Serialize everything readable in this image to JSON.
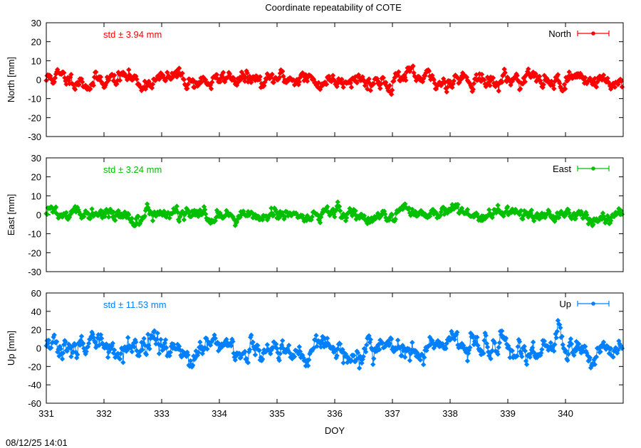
{
  "figure": {
    "title": "Coordinate repeatability of COTE",
    "timestamp": "08/12/25 14:01"
  },
  "chart_data": [
    {
      "type": "scatter",
      "id": "north",
      "ylabel": "North [mm]",
      "xlabel": "",
      "xlim": [
        331,
        341
      ],
      "ylim": [
        -30,
        30
      ],
      "yticks": [
        -30,
        -20,
        -10,
        0,
        10,
        20,
        30
      ],
      "xticks": [],
      "legend": "North",
      "legend_position": "top-right",
      "stat_label": "std ± 3.94 mm",
      "std": 3.94,
      "color": "#ff0000",
      "grid": false
    },
    {
      "type": "scatter",
      "id": "east",
      "ylabel": "East [mm]",
      "xlabel": "",
      "xlim": [
        331,
        341
      ],
      "ylim": [
        -30,
        30
      ],
      "yticks": [
        -30,
        -20,
        -10,
        0,
        10,
        20,
        30
      ],
      "xticks": [],
      "legend": "East",
      "legend_position": "top-right",
      "stat_label": "std ± 3.24 mm",
      "std": 3.24,
      "color": "#00c000",
      "grid": false
    },
    {
      "type": "scatter",
      "id": "up",
      "ylabel": "Up [mm]",
      "xlabel": "DOY",
      "xlim": [
        331,
        341
      ],
      "ylim": [
        -60,
        60
      ],
      "yticks": [
        -60,
        -40,
        -20,
        0,
        20,
        40,
        60
      ],
      "xticks": [
        331,
        332,
        333,
        334,
        335,
        336,
        337,
        338,
        339,
        340
      ],
      "legend": "Up",
      "legend_position": "top-right",
      "stat_label": "std ± 11.53 mm",
      "std": 11.53,
      "color": "#0080ff",
      "grid": false
    }
  ]
}
